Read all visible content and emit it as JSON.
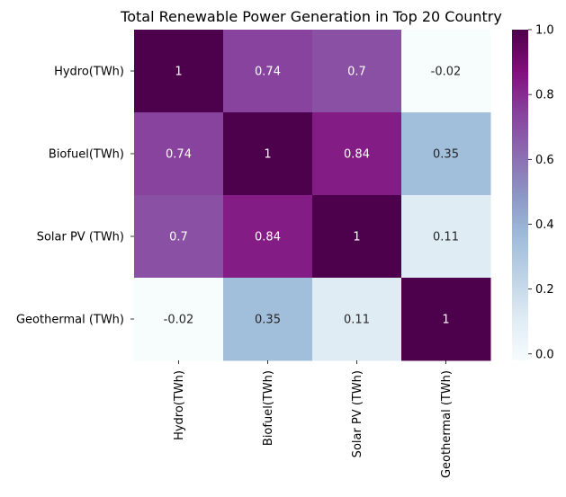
{
  "chart_data": {
    "type": "heatmap",
    "title": "Total Renewable Power Generation in Top 20 Country",
    "xlabel": "",
    "ylabel": "",
    "rows": [
      "Hydro(TWh)",
      "Biofuel(TWh)",
      "Solar PV (TWh)",
      "Geothermal (TWh)"
    ],
    "columns": [
      "Hydro(TWh)",
      "Biofuel(TWh)",
      "Solar PV (TWh)",
      "Geothermal (TWh)"
    ],
    "values": [
      [
        1.0,
        0.74,
        0.7,
        -0.02
      ],
      [
        0.74,
        1.0,
        0.84,
        0.35
      ],
      [
        0.7,
        0.84,
        1.0,
        0.11
      ],
      [
        -0.02,
        0.35,
        0.11,
        1.0
      ]
    ],
    "annotations": [
      [
        "1",
        "0.74",
        "0.7",
        "-0.02"
      ],
      [
        "0.74",
        "1",
        "0.84",
        "0.35"
      ],
      [
        "0.7",
        "0.84",
        "1",
        "0.11"
      ],
      [
        "-0.02",
        "0.35",
        "0.11",
        "1"
      ]
    ],
    "colorbar": {
      "min": -0.02,
      "max": 1.0,
      "ticks": [
        0.0,
        0.2,
        0.4,
        0.6,
        0.8,
        1.0
      ],
      "tick_labels": [
        "0.0",
        "0.2",
        "0.4",
        "0.6",
        "0.8",
        "1.0"
      ],
      "colormap": "BuPu"
    },
    "colormap_stops": [
      "#f7fcfd",
      "#e0ecf4",
      "#bfd3e6",
      "#9ebcda",
      "#8c96c6",
      "#8c6bb1",
      "#88419d",
      "#810f7c",
      "#4d004b"
    ],
    "annotation_colors": {
      "light": "#ffffff",
      "dark": "#262626"
    },
    "text_color": "#000000",
    "grid": false
  }
}
